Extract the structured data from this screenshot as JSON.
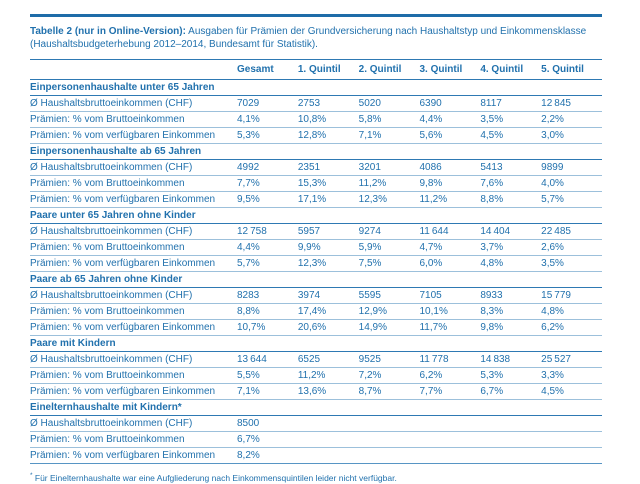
{
  "caption": {
    "bold": "Tabelle 2 (nur in Online-Version):",
    "line1_rest": " Ausgaben für Prämien der Grundversicherung nach Haushaltstyp und Einkommensklasse",
    "line2": "(Haushaltsbudgeterhebung 2012–2014, Bundesamt für Statistik)."
  },
  "table": {
    "columns": [
      "",
      "Gesamt",
      "1. Quintil",
      "2. Quintil",
      "3. Quintil",
      "4. Quintil",
      "5. Quintil"
    ],
    "sections": [
      {
        "title": "Einpersonenhaushalte unter 65 Jahren",
        "rows": [
          {
            "label": "Ø Haushaltsbruttoeinkommen (CHF)",
            "values": [
              "7029",
              "2753",
              "5020",
              "6390",
              "8117",
              "12 845"
            ]
          },
          {
            "label": "Prämien: % vom Bruttoeinkommen",
            "values": [
              "4,1%",
              "10,8%",
              "5,8%",
              "4,4%",
              "3,5%",
              "2,2%"
            ]
          },
          {
            "label": "Prämien: % vom verfügbaren Einkommen",
            "values": [
              "5,3%",
              "12,8%",
              "7,1%",
              "5,6%",
              "4,5%",
              "3,0%"
            ]
          }
        ]
      },
      {
        "title": "Einpersonenhaushalte ab 65 Jahren",
        "rows": [
          {
            "label": "Ø Haushaltsbruttoeinkommen (CHF)",
            "values": [
              "4992",
              "2351",
              "3201",
              "4086",
              "5413",
              "9899"
            ]
          },
          {
            "label": "Prämien: % vom Bruttoeinkommen",
            "values": [
              "7,7%",
              "15,3%",
              "11,2%",
              "9,8%",
              "7,6%",
              "4,0%"
            ]
          },
          {
            "label": "Prämien: % vom verfügbaren Einkommen",
            "values": [
              "9,5%",
              "17,1%",
              "12,3%",
              "11,2%",
              "8,8%",
              "5,7%"
            ]
          }
        ]
      },
      {
        "title": "Paare unter 65 Jahren ohne Kinder",
        "rows": [
          {
            "label": "Ø Haushaltsbruttoeinkommen (CHF)",
            "values": [
              "12 758",
              "5957",
              "9274",
              "11 644",
              "14 404",
              "22 485"
            ]
          },
          {
            "label": "Prämien: % vom Bruttoeinkommen",
            "values": [
              "4,4%",
              "9,9%",
              "5,9%",
              "4,7%",
              "3,7%",
              "2,6%"
            ]
          },
          {
            "label": "Prämien: % vom verfügbaren Einkommen",
            "values": [
              "5,7%",
              "12,3%",
              "7,5%",
              "6,0%",
              "4,8%",
              "3,5%"
            ]
          }
        ]
      },
      {
        "title": "Paare ab 65 Jahren ohne Kinder",
        "rows": [
          {
            "label": "Ø Haushaltsbruttoeinkommen (CHF)",
            "values": [
              "8283",
              "3974",
              "5595",
              "7105",
              "8933",
              "15 779"
            ]
          },
          {
            "label": "Prämien: % vom Bruttoeinkommen",
            "values": [
              "8,8%",
              "17,4%",
              "12,9%",
              "10,1%",
              "8,3%",
              "4,8%"
            ]
          },
          {
            "label": "Prämien: % vom verfügbaren Einkommen",
            "values": [
              "10,7%",
              "20,6%",
              "14,9%",
              "11,7%",
              "9,8%",
              "6,2%"
            ]
          }
        ]
      },
      {
        "title": "Paare mit Kindern",
        "rows": [
          {
            "label": "Ø Haushaltsbruttoeinkommen (CHF)",
            "values": [
              "13 644",
              "6525",
              "9525",
              "11 778",
              "14 838",
              "25 527"
            ]
          },
          {
            "label": "Prämien: % vom Bruttoeinkommen",
            "values": [
              "5,5%",
              "11,2%",
              "7,2%",
              "6,2%",
              "5,3%",
              "3,3%"
            ]
          },
          {
            "label": "Prämien: % vom verfügbaren Einkommen",
            "values": [
              "7,1%",
              "13,6%",
              "8,7%",
              "7,7%",
              "6,7%",
              "4,5%"
            ]
          }
        ]
      },
      {
        "title": "Einelternhaushalte mit Kindern*",
        "rows": [
          {
            "label": "Ø Haushaltsbruttoeinkommen (CHF)",
            "values": [
              "8500",
              "",
              "",
              "",
              "",
              ""
            ]
          },
          {
            "label": "Prämien: % vom Bruttoeinkommen",
            "values": [
              "6,7%",
              "",
              "",
              "",
              "",
              ""
            ]
          },
          {
            "label": "Prämien: % vom verfügbaren Einkommen",
            "values": [
              "8,2%",
              "",
              "",
              "",
              "",
              ""
            ]
          }
        ]
      }
    ]
  },
  "footnote": {
    "marker": "*",
    "text": " Für Einelternhaushalte war eine Aufgliederung nach Einkommensquintilen leider nicht verfügbar."
  },
  "colors": {
    "text_blue": "#2171ad",
    "rule_dark": "#2e79b3",
    "rule_light": "#9cc0db",
    "top_rule": "#1e6ca8"
  }
}
